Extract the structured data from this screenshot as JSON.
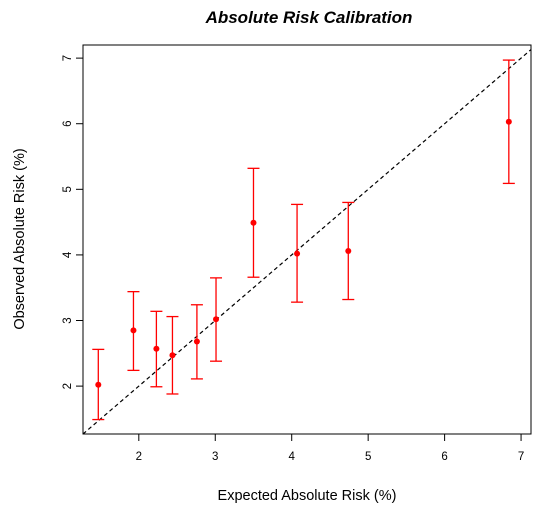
{
  "chart_data": {
    "type": "scatter",
    "title": "Absolute Risk Calibration",
    "xlabel": "Expected Absolute Risk (%)",
    "ylabel": "Observed Absolute Risk (%)",
    "xlim": [
      1.27,
      7.13
    ],
    "ylim": [
      1.27,
      7.2
    ],
    "xticks": [
      2,
      3,
      4,
      5,
      6,
      7
    ],
    "yticks": [
      2,
      3,
      4,
      5,
      6,
      7
    ],
    "grid": false,
    "reference_line": {
      "slope": 1,
      "intercept": 0,
      "style": "dashed",
      "color": "#000000"
    },
    "points": [
      {
        "x": 1.47,
        "y": 2.02,
        "lo": 1.49,
        "hi": 2.56
      },
      {
        "x": 1.93,
        "y": 2.85,
        "lo": 2.24,
        "hi": 3.44
      },
      {
        "x": 2.23,
        "y": 2.57,
        "lo": 1.99,
        "hi": 3.14
      },
      {
        "x": 2.44,
        "y": 2.47,
        "lo": 1.88,
        "hi": 3.06
      },
      {
        "x": 2.76,
        "y": 2.68,
        "lo": 2.11,
        "hi": 3.24
      },
      {
        "x": 3.01,
        "y": 3.02,
        "lo": 2.38,
        "hi": 3.65
      },
      {
        "x": 3.5,
        "y": 4.49,
        "lo": 3.66,
        "hi": 5.32
      },
      {
        "x": 4.07,
        "y": 4.02,
        "lo": 3.28,
        "hi": 4.77
      },
      {
        "x": 4.74,
        "y": 4.06,
        "lo": 3.32,
        "hi": 4.8
      },
      {
        "x": 6.84,
        "y": 6.03,
        "lo": 5.09,
        "hi": 6.97
      }
    ],
    "colors": {
      "points": "#ff0000",
      "errorbars": "#ff0000",
      "axis": "#000000"
    }
  }
}
